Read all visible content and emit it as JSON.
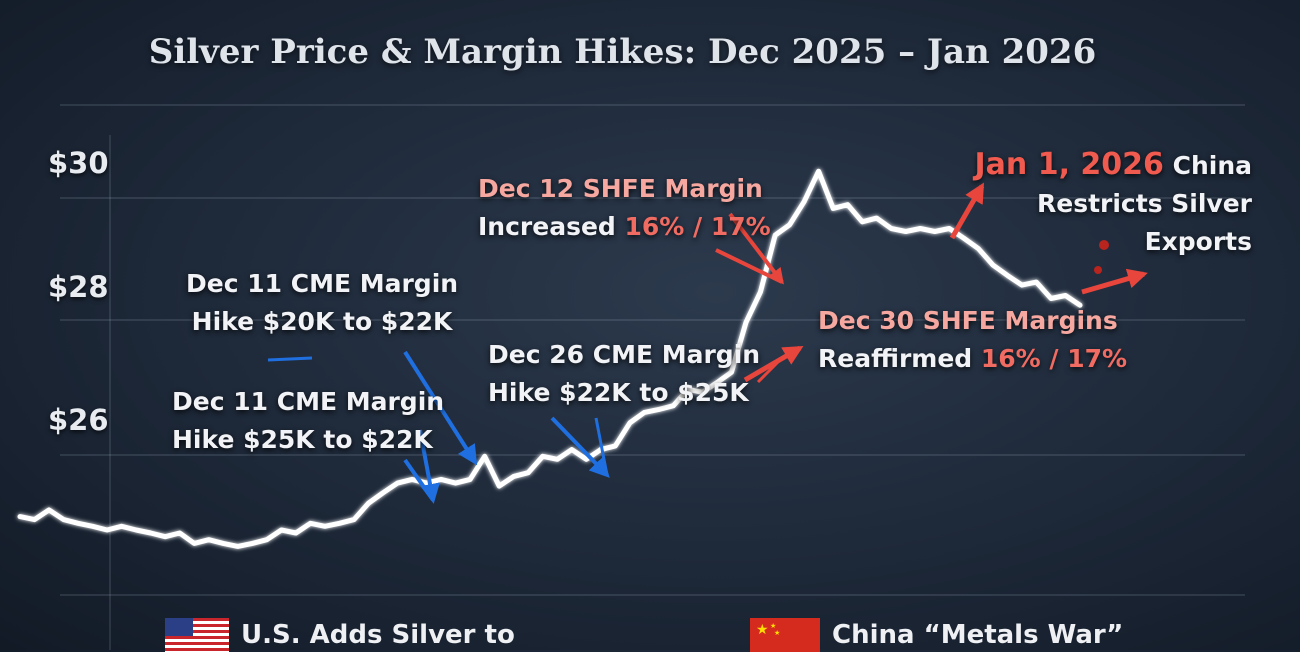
{
  "title": "Silver Price & Margin Hikes: Dec 2025 – Jan 2026",
  "colors": {
    "background": "#1d2838",
    "line": "#ffffff",
    "cme_arrows": "#1f6fe0",
    "shfe_arrows": "#e8463c",
    "highlight_red": "#f06b62",
    "highlight_pink": "#f6a8a0"
  },
  "chart_data": {
    "type": "line",
    "title": "Silver Price & Margin Hikes: Dec 2025 – Jan 2026",
    "xlabel": "",
    "ylabel": "",
    "y_tick_labels": [
      "$30",
      "$28",
      "$26"
    ],
    "y_ticks": [
      30,
      28,
      26
    ],
    "ylim": [
      23.5,
      30.6
    ],
    "grid": true,
    "series": [
      {
        "values": [
          24.7,
          24.7,
          24.8,
          24.7,
          24.6,
          24.6,
          24.5,
          24.6,
          24.5,
          24.5,
          24.4,
          24.5,
          24.3,
          24.4,
          24.3,
          24.3,
          24.3,
          24.4,
          24.5,
          24.5,
          24.6,
          24.6,
          24.6,
          24.7,
          24.9,
          25.1,
          25.2,
          25.3,
          25.2,
          25.3,
          25.2,
          25.3,
          25.6,
          25.2,
          25.3,
          25.4,
          25.6,
          25.6,
          25.7,
          25.6,
          25.7,
          25.8,
          26.1,
          26.3,
          26.3,
          26.4,
          26.6,
          26.6,
          26.7,
          26.9,
          27.6,
          28.1,
          28.9,
          29.1,
          29.4,
          29.9,
          29.3,
          29.4,
          29.1,
          29.2,
          29.0,
          29.0,
          29.0,
          29.0,
          29.0,
          28.9,
          28.7,
          28.5,
          28.3,
          28.2,
          28.2,
          28.0,
          28.0,
          27.9
        ]
      }
    ],
    "annotations": [
      {
        "date": "Dec 11",
        "exchange": "CME",
        "text": "Dec 11 CME Margin Hike $20K to $22K",
        "value": 25.6
      },
      {
        "date": "Dec 11",
        "exchange": "CME",
        "text": "Dec 11 CME Margin Hike $25K to $22K",
        "value": 25.3
      },
      {
        "date": "Dec 26",
        "exchange": "CME",
        "text": "Dec 26 CME Margin Hike $22K to $25K",
        "value": 25.8
      },
      {
        "date": "Dec 12",
        "exchange": "SHFE",
        "text": "Dec 12 SHFE Margin Increased 16% / 17%",
        "value": 28.1
      },
      {
        "date": "Dec 30",
        "exchange": "SHFE",
        "text": "Dec 30 SHFE Margins Reaffirmed 16% / 17%",
        "value": 27.0
      },
      {
        "date": "Jan 1, 2026",
        "text": "Jan 1, 2026 China Restricts Silver Exports",
        "value": 27.9
      }
    ]
  },
  "axis": {
    "y_labels": [
      "$30",
      "$28",
      "$26"
    ]
  },
  "annotations": {
    "cme1": {
      "line1": "Dec 11 CME Margin",
      "line2": "Hike $20K to $22K"
    },
    "cme2": {
      "line1": "Dec 11 CME Margin",
      "line2": "Hike $25K to $22K"
    },
    "cme3": {
      "line1": "Dec 26 CME Margin",
      "line2": "Hike $22K to $25K"
    },
    "shfe1": {
      "line1": "Dec 12 SHFE Margin",
      "line2_prefix": "Increased ",
      "line2_highlight": "16% / 17%"
    },
    "shfe2": {
      "line1": "Dec 30 SHFE Margins",
      "line2_prefix": "Reaffirmed ",
      "line2_highlight": "16% / 17%"
    },
    "jan": {
      "date": "Jan 1, 2026",
      "line1_suffix": " China",
      "line2": "Restricts Silver",
      "line3": "Exports"
    }
  },
  "footer": {
    "us_text": "U.S. Adds Silver to",
    "us_flag": "us-flag-icon",
    "china_text": "China “Metals War”",
    "china_flag": "china-flag-icon"
  }
}
